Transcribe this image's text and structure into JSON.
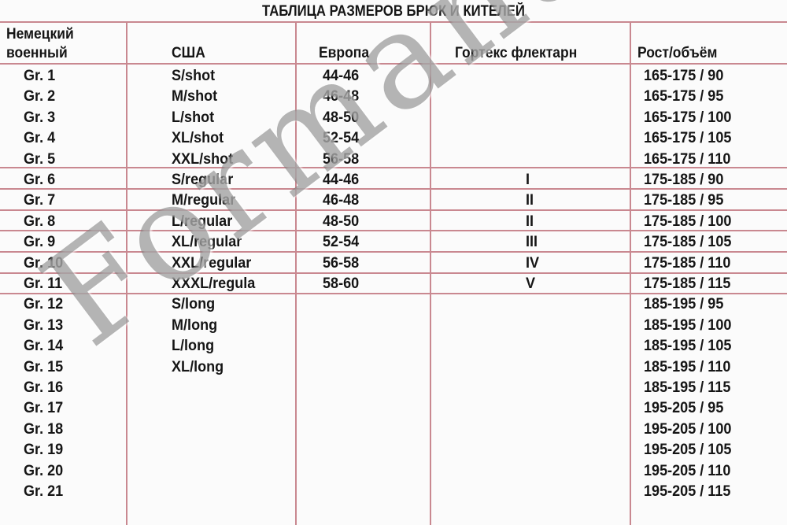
{
  "title": "ТАБЛИЦА РАЗМЕРОВ БРЮК И КИТЕЛЕЙ",
  "headers": {
    "german_line1": "Немецкий",
    "german_line2": "военный",
    "usa": "США",
    "europe": "Европа",
    "gortex": "Гортекс флектарн",
    "height_volume": "Рост/объём"
  },
  "rows": [
    [
      "Gr. 1",
      "S/shot",
      "44-46",
      "",
      "165-175 / 90"
    ],
    [
      "Gr. 2",
      "M/shot",
      "46-48",
      "",
      "165-175 / 95"
    ],
    [
      "Gr. 3",
      "L/shot",
      "48-50",
      "",
      "165-175 / 100"
    ],
    [
      "Gr. 4",
      "XL/shot",
      "52-54",
      "",
      "165-175 / 105"
    ],
    [
      "Gr. 5",
      "XXL/shot",
      "56-58",
      "",
      "165-175 / 110"
    ],
    [
      "Gr. 6",
      "S/regular",
      "44-46",
      "I",
      "175-185 / 90"
    ],
    [
      "Gr. 7",
      "M/regular",
      "46-48",
      "II",
      "175-185 / 95"
    ],
    [
      "Gr. 8",
      "L/regular",
      "48-50",
      "II",
      "175-185 / 100"
    ],
    [
      "Gr. 9",
      "XL/regular",
      "52-54",
      "III",
      "175-185 / 105"
    ],
    [
      "Gr. 10",
      "XXL/regular",
      "56-58",
      "IV",
      "175-185 / 110"
    ],
    [
      "Gr. 11",
      "XXXL/regula",
      "58-60",
      "V",
      "175-185 / 115"
    ],
    [
      "Gr. 12",
      "S/long",
      "",
      "",
      "185-195 / 95"
    ],
    [
      "Gr. 13",
      "M/long",
      "",
      "",
      "185-195 / 100"
    ],
    [
      "Gr. 14",
      "L/long",
      "",
      "",
      "185-195 / 105"
    ],
    [
      "Gr. 15",
      "XL/long",
      "",
      "",
      "185-195 / 110"
    ],
    [
      "Gr. 16",
      "",
      "",
      "",
      "185-195 / 115"
    ],
    [
      "Gr. 17",
      "",
      "",
      "",
      "195-205 / 95"
    ],
    [
      "Gr. 18",
      "",
      "",
      "",
      "195-205 / 100"
    ],
    [
      "Gr. 19",
      "",
      "",
      "",
      "195-205 / 105"
    ],
    [
      "Gr. 20",
      "",
      "",
      "",
      "195-205 / 110"
    ],
    [
      "Gr. 21",
      "",
      "",
      "",
      "195-205 / 115"
    ]
  ],
  "watermark": "Formanato",
  "colors": {
    "grid": "#c98890",
    "text": "#151515",
    "watermark": "#787878"
  }
}
